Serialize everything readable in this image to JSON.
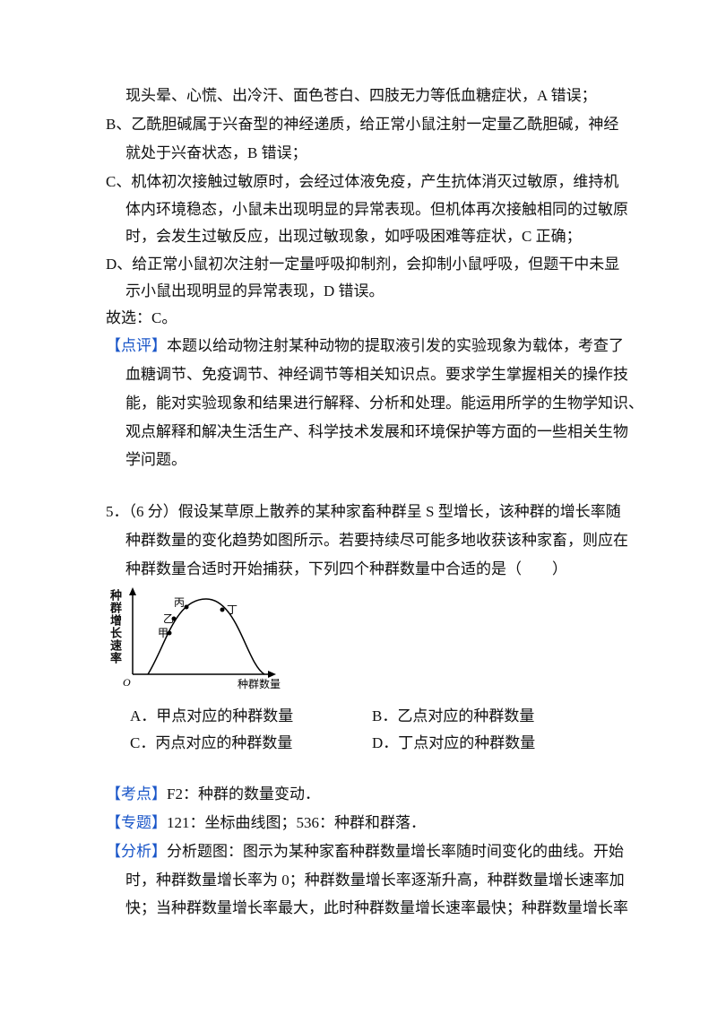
{
  "prev_answer": {
    "items": [
      {
        "lines": [
          "现头晕、心慌、出冷汗、面色苍白、四肢无力等低血糖症状，A 错误；"
        ]
      },
      {
        "lines": [
          "B、乙酰胆碱属于兴奋型的神经递质，给正常小鼠注射一定量乙酰胆碱，神经",
          "就处于兴奋状态，B 错误；"
        ]
      },
      {
        "lines": [
          "C、机体初次接触过敏原时，会经过体液免疫，产生抗体消灭过敏原，维持机",
          "体内环境稳态，小鼠未出现明显的异常表现。但机体再次接触相同的过敏原",
          "时，会发生过敏反应，出现过敏现象，如呼吸困难等症状，C 正确；"
        ]
      },
      {
        "lines": [
          "D、给正常小鼠初次注射一定量呼吸抑制剂，会抑制小鼠呼吸，但题干中未显",
          "示小鼠出现明显的异常表现，D 错误。"
        ]
      }
    ],
    "answer": "故选：C。",
    "comment": {
      "label": "【点评】",
      "lines": [
        "本题以给动物注射某种动物的提取液引发的实验现象为载体，考查了",
        "血糖调节、免疫调节、神经调节等相关知识点。要求学生掌握相关的操作技",
        "能，能对实验现象和结果进行解释、分析和处理。能运用所学的生物学知识、",
        "观点解释和解决生活生产、科学技术发展和环境保护等方面的一些相关生物",
        "学问题。"
      ]
    }
  },
  "question": {
    "lines": [
      "5．（6 分）假设某草原上散养的某种家畜种群呈 S 型增长，该种群的增长率随",
      "种群数量的变化趋势如图所示。若要持续尽可能多地收获该种家畜，则应在",
      "种群数量合适时开始捕获，下列四个种群数量中合适的是（　　）"
    ]
  },
  "figure": {
    "y_label": "种群增长速率",
    "x_label": "种群数量",
    "origin": "O",
    "points": [
      "甲",
      "乙",
      "丙",
      "丁"
    ]
  },
  "options": [
    "A．甲点对应的种群数量",
    "B．乙点对应的种群数量",
    "C．丙点对应的种群数量",
    "D．丁点对应的种群数量"
  ],
  "analysis": {
    "kaodian": {
      "label": "【考点】",
      "text": "F2：种群的数量变动．"
    },
    "zhuanti": {
      "label": "【专题】",
      "text": "121：坐标曲线图；536：种群和群落．"
    },
    "fenxi": {
      "label": "【分析】",
      "lines": [
        "分析题图：图示为某种家畜种群数量增长率随时间变化的曲线。开始",
        "时，种群数量增长率为 0；种群数量增长率逐渐升高，种群数量增长速率加",
        "快；当种群数量增长率最大，此时种群数量增长速率最快；种群数量增长率"
      ]
    }
  }
}
